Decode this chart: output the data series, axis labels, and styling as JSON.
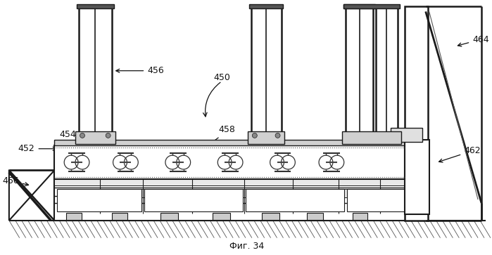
{
  "bg_color": "#ffffff",
  "lc": "#1a1a1a",
  "title": "Фиг. 34",
  "fig_w": 6.99,
  "fig_h": 3.63,
  "dpi": 100
}
